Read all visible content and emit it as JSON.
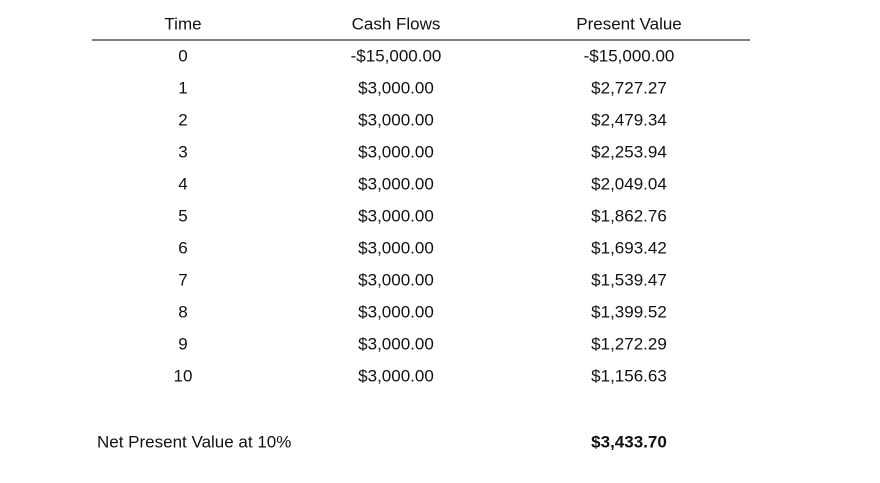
{
  "table": {
    "header": [
      "Time",
      "Cash Flows",
      "Present Value"
    ],
    "rows": [
      [
        "0",
        "-$15,000.00",
        "-$15,000.00"
      ],
      [
        "1",
        "$3,000.00",
        "$2,727.27"
      ],
      [
        "2",
        "$3,000.00",
        "$2,479.34"
      ],
      [
        "3",
        "$3,000.00",
        "$2,253.94"
      ],
      [
        "4",
        "$3,000.00",
        "$2,049.04"
      ],
      [
        "5",
        "$3,000.00",
        "$1,862.76"
      ],
      [
        "6",
        "$3,000.00",
        "$1,693.42"
      ],
      [
        "7",
        "$3,000.00",
        "$1,539.47"
      ],
      [
        "8",
        "$3,000.00",
        "$1,399.52"
      ],
      [
        "9",
        "$3,000.00",
        "$1,272.29"
      ],
      [
        "10",
        "$3,000.00",
        "$1,156.63"
      ]
    ],
    "footer": {
      "label": "Net Present Value at 10%",
      "value": "$3,433.70"
    }
  }
}
